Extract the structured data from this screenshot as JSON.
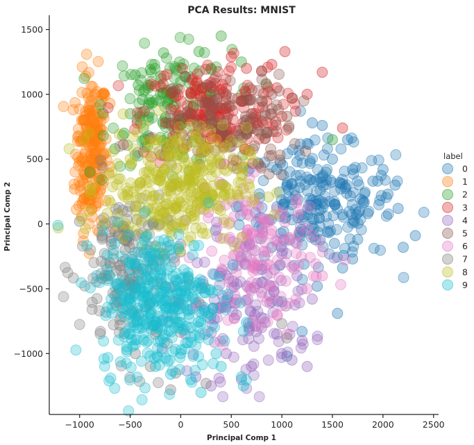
{
  "chart_data": {
    "type": "scatter",
    "title": "PCA Results: MNIST",
    "xlabel": "Principal Comp 1",
    "ylabel": "Principal Comp 2",
    "xlim": [
      -1300,
      2550
    ],
    "ylim": [
      -1470,
      1610
    ],
    "xticks": [
      -1000,
      -500,
      0,
      500,
      1000,
      1500,
      2000,
      2500
    ],
    "yticks": [
      -1000,
      -500,
      0,
      500,
      1000,
      1500
    ],
    "grid": false,
    "marker_alpha": 0.3,
    "legend": {
      "title": "label",
      "placement": "right"
    },
    "series": [
      {
        "name": "0",
        "color": "#1f77b4",
        "center": [
          1350,
          150
        ],
        "spread": [
          380,
          220
        ],
        "points": [
          [
            2320,
            -90
          ],
          [
            2200,
            -180
          ],
          [
            2120,
            300
          ],
          [
            2000,
            420
          ],
          [
            1900,
            330
          ],
          [
            1800,
            180
          ],
          [
            1750,
            -120
          ],
          [
            1700,
            -270
          ],
          [
            1600,
            -340
          ],
          [
            1550,
            -690
          ],
          [
            1500,
            500
          ],
          [
            1400,
            760
          ],
          [
            1300,
            780
          ],
          [
            1250,
            620
          ],
          [
            1150,
            480
          ],
          [
            1050,
            300
          ],
          [
            900,
            -180
          ],
          [
            800,
            -350
          ],
          [
            1000,
            -600
          ],
          [
            1050,
            -1020
          ],
          [
            1200,
            -830
          ],
          [
            1350,
            -480
          ],
          [
            1650,
            650
          ],
          [
            1850,
            80
          ],
          [
            2050,
            230
          ],
          [
            2150,
            120
          ],
          [
            1450,
            -60
          ],
          [
            1300,
            40
          ],
          [
            1100,
            150
          ],
          [
            950,
            420
          ],
          [
            1600,
            310
          ],
          [
            1520,
            -150
          ],
          [
            1220,
            -310
          ],
          [
            1700,
            420
          ]
        ]
      },
      {
        "name": "1",
        "color": "#ff7f0e",
        "center": [
          -880,
          560
        ],
        "spread": [
          80,
          300
        ],
        "points": [
          [
            -1050,
            270
          ],
          [
            -1000,
            480
          ],
          [
            -980,
            800
          ],
          [
            -900,
            920
          ],
          [
            -850,
            1000
          ],
          [
            -780,
            1000
          ],
          [
            -700,
            930
          ],
          [
            -920,
            650
          ],
          [
            -960,
            400
          ],
          [
            -880,
            120
          ],
          [
            -980,
            60
          ],
          [
            -800,
            250
          ],
          [
            -820,
            720
          ],
          [
            -760,
            540
          ],
          [
            -1010,
            680
          ],
          [
            -940,
            560
          ]
        ]
      },
      {
        "name": "2",
        "color": "#2ca02c",
        "center": [
          -100,
          900
        ],
        "spread": [
          300,
          220
        ],
        "points": [
          [
            400,
            1450
          ],
          [
            180,
            1330
          ],
          [
            -170,
            1320
          ],
          [
            -450,
            1150
          ],
          [
            -300,
            1190
          ],
          [
            -500,
            850
          ],
          [
            -650,
            580
          ],
          [
            -900,
            400
          ],
          [
            -200,
            1000
          ],
          [
            0,
            1100
          ],
          [
            300,
            1200
          ],
          [
            600,
            1250
          ],
          [
            80,
            830
          ],
          [
            -380,
            960
          ],
          [
            -560,
            700
          ],
          [
            1500,
            650
          ],
          [
            220,
            1050
          ],
          [
            -50,
            700
          ],
          [
            -420,
            1070
          ]
        ]
      },
      {
        "name": "3",
        "color": "#d62728",
        "center": [
          300,
          850
        ],
        "spread": [
          350,
          200
        ],
        "points": [
          [
            1030,
            1330
          ],
          [
            1400,
            1170
          ],
          [
            1250,
            1000
          ],
          [
            1000,
            830
          ],
          [
            900,
            1230
          ],
          [
            800,
            1180
          ],
          [
            650,
            1200
          ],
          [
            500,
            1290
          ],
          [
            300,
            1090
          ],
          [
            0,
            950
          ],
          [
            100,
            850
          ],
          [
            600,
            950
          ],
          [
            1600,
            740
          ],
          [
            1100,
            970
          ],
          [
            -150,
            780
          ],
          [
            400,
            700
          ],
          [
            750,
            780
          ],
          [
            950,
            1050
          ],
          [
            200,
            980
          ]
        ]
      },
      {
        "name": "4",
        "color": "#9467bd",
        "center": [
          600,
          -600
        ],
        "spread": [
          350,
          280
        ],
        "points": [
          [
            1250,
            -1100
          ],
          [
            1100,
            -1050
          ],
          [
            1000,
            -1000
          ],
          [
            1200,
            -900
          ],
          [
            1300,
            -580
          ],
          [
            900,
            -600
          ],
          [
            800,
            -800
          ],
          [
            700,
            -1100
          ],
          [
            600,
            -1200
          ],
          [
            450,
            -1000
          ],
          [
            300,
            -1250
          ],
          [
            150,
            -1180
          ],
          [
            800,
            -450
          ],
          [
            1000,
            -230
          ],
          [
            650,
            -250
          ],
          [
            950,
            -850
          ],
          [
            550,
            -700
          ],
          [
            1150,
            -400
          ]
        ]
      },
      {
        "name": "5",
        "color": "#8c564b",
        "center": [
          550,
          750
        ],
        "spread": [
          300,
          200
        ],
        "points": [
          [
            900,
            1000
          ],
          [
            800,
            950
          ],
          [
            700,
            850
          ],
          [
            650,
            800
          ],
          [
            850,
            700
          ],
          [
            500,
            600
          ],
          [
            300,
            900
          ],
          [
            1050,
            830
          ],
          [
            450,
            1000
          ],
          [
            600,
            950
          ]
        ]
      },
      {
        "name": "6",
        "color": "#e377c2",
        "center": [
          800,
          -200
        ],
        "spread": [
          300,
          250
        ],
        "points": [
          [
            1000,
            -630
          ],
          [
            950,
            -700
          ],
          [
            1050,
            -850
          ],
          [
            850,
            -600
          ],
          [
            1250,
            -500
          ],
          [
            1400,
            -400
          ],
          [
            1100,
            -330
          ],
          [
            700,
            -450
          ],
          [
            1150,
            -150
          ],
          [
            900,
            -50
          ],
          [
            750,
            150
          ]
        ]
      },
      {
        "name": "7",
        "color": "#7f7f7f",
        "center": [
          -500,
          -350
        ],
        "spread": [
          250,
          350
        ],
        "points": [
          [
            -1000,
            20
          ],
          [
            -700,
            -300
          ],
          [
            -650,
            -550
          ],
          [
            -600,
            -780
          ],
          [
            -450,
            -1000
          ],
          [
            -300,
            -1100
          ],
          [
            -100,
            -1280
          ],
          [
            -50,
            -1150
          ],
          [
            250,
            -1230
          ],
          [
            1000,
            -770
          ],
          [
            1050,
            -880
          ],
          [
            -250,
            -850
          ],
          [
            -550,
            -200
          ],
          [
            -780,
            -420
          ],
          [
            -420,
            -700
          ]
        ]
      },
      {
        "name": "8",
        "color": "#bcbd22",
        "center": [
          -50,
          300
        ],
        "spread": [
          350,
          220
        ],
        "points": [
          [
            -500,
            500
          ],
          [
            -300,
            450
          ],
          [
            -100,
            300
          ],
          [
            100,
            250
          ],
          [
            250,
            150
          ],
          [
            300,
            500
          ],
          [
            -400,
            200
          ],
          [
            -200,
            100
          ],
          [
            0,
            550
          ],
          [
            200,
            600
          ],
          [
            -600,
            350
          ],
          [
            100,
            -100
          ],
          [
            350,
            650
          ],
          [
            -250,
            650
          ],
          [
            -50,
            0
          ],
          [
            400,
            300
          ],
          [
            -450,
            -50
          ],
          [
            150,
            420
          ]
        ]
      },
      {
        "name": "9",
        "color": "#17becf",
        "center": [
          -200,
          -600
        ],
        "spread": [
          300,
          280
        ],
        "points": [
          [
            -500,
            -850
          ],
          [
            -450,
            -930
          ],
          [
            -250,
            -1100
          ],
          [
            -100,
            -1160
          ],
          [
            100,
            -1200
          ],
          [
            200,
            -1300
          ],
          [
            400,
            -1100
          ],
          [
            600,
            -1180
          ],
          [
            620,
            -1250
          ],
          [
            650,
            -760
          ],
          [
            350,
            -1000
          ],
          [
            0,
            -1000
          ],
          [
            -300,
            -400
          ],
          [
            -500,
            -300
          ],
          [
            -650,
            -150
          ],
          [
            -700,
            -400
          ],
          [
            -550,
            -600
          ],
          [
            -300,
            -700
          ],
          [
            200,
            -500
          ],
          [
            -100,
            -200
          ],
          [
            -400,
            -500
          ],
          [
            100,
            -800
          ],
          [
            300,
            -700
          ],
          [
            -200,
            -900
          ]
        ]
      }
    ]
  }
}
